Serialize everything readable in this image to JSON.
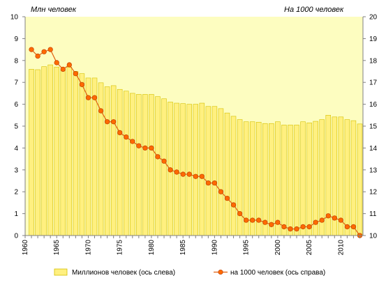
{
  "chart_data": {
    "type": "bar",
    "left_unit_label": "Млн  человек",
    "right_unit_label": "На 1000 человек",
    "colors": {
      "plot_background": "#fdfdc0",
      "bar_fill": "#fff080",
      "bar_stroke": "#d4c000",
      "line": "#e06010",
      "marker_fill": "#ff6a00",
      "marker_stroke": "#c04000",
      "axis": "#808080"
    },
    "left_axis": {
      "min": 0,
      "max": 10,
      "ticks": [
        "0",
        "1",
        "2",
        "3",
        "4",
        "5",
        "6",
        "7",
        "8",
        "9",
        "10"
      ]
    },
    "right_axis": {
      "min": 10,
      "max": 20,
      "ticks": [
        "10",
        "11",
        "12",
        "13",
        "14",
        "15",
        "16",
        "17",
        "18",
        "19",
        "20"
      ]
    },
    "x_ticks": [
      "1960",
      "1965",
      "1970",
      "1975",
      "1980",
      "1985",
      "1990",
      "1995",
      "2000",
      "2005",
      "2010"
    ],
    "series": [
      {
        "name": "Миллионов   человек (ось слева)",
        "type": "bar",
        "axis": "left",
        "x": [
          1961,
          1962,
          1963,
          1964,
          1965,
          1966,
          1967,
          1968,
          1969,
          1970,
          1971,
          1972,
          1973,
          1974,
          1975,
          1976,
          1977,
          1978,
          1979,
          1980,
          1981,
          1982,
          1983,
          1984,
          1985,
          1986,
          1987,
          1988,
          1989,
          1990,
          1991,
          1992,
          1993,
          1994,
          1995,
          1996,
          1997,
          1998,
          1999,
          2000,
          2001,
          2002,
          2003,
          2004,
          2005,
          2006,
          2007,
          2008,
          2009,
          2010,
          2011,
          2012,
          2013
        ],
        "values": [
          7.6,
          7.58,
          7.72,
          7.8,
          7.7,
          7.56,
          7.7,
          7.5,
          7.4,
          7.2,
          7.2,
          6.98,
          6.8,
          6.85,
          6.68,
          6.6,
          6.5,
          6.45,
          6.45,
          6.45,
          6.35,
          6.25,
          6.1,
          6.05,
          6.03,
          6.0,
          6.0,
          6.05,
          5.9,
          5.9,
          5.8,
          5.6,
          5.45,
          5.3,
          5.2,
          5.2,
          5.18,
          5.12,
          5.12,
          5.2,
          5.05,
          5.05,
          5.05,
          5.2,
          5.15,
          5.22,
          5.3,
          5.5,
          5.42,
          5.42,
          5.3,
          5.25,
          5.1
        ]
      },
      {
        "name": "на 1000  человек (ось справа)",
        "type": "line",
        "axis": "right",
        "x": [
          1961,
          1962,
          1963,
          1964,
          1965,
          1966,
          1967,
          1968,
          1969,
          1970,
          1971,
          1972,
          1973,
          1974,
          1975,
          1976,
          1977,
          1978,
          1979,
          1980,
          1981,
          1982,
          1983,
          1984,
          1985,
          1986,
          1987,
          1988,
          1989,
          1990,
          1991,
          1992,
          1993,
          1994,
          1995,
          1996,
          1997,
          1998,
          1999,
          2000,
          2001,
          2002,
          2003,
          2004,
          2005,
          2006,
          2007,
          2008,
          2009,
          2010,
          2011,
          2012,
          2013
        ],
        "values": [
          18.5,
          18.2,
          18.4,
          18.5,
          17.9,
          17.6,
          17.8,
          17.4,
          16.9,
          16.3,
          16.3,
          15.7,
          15.2,
          15.2,
          14.7,
          14.5,
          14.3,
          14.1,
          14.0,
          14.0,
          13.6,
          13.4,
          13.0,
          12.9,
          12.8,
          12.8,
          12.7,
          12.7,
          12.4,
          12.4,
          12.0,
          11.7,
          11.4,
          11.0,
          10.7,
          10.7,
          10.7,
          10.6,
          10.5,
          10.6,
          10.4,
          10.3,
          10.3,
          10.4,
          10.4,
          10.6,
          10.7,
          10.9,
          10.8,
          10.7,
          10.4,
          10.4,
          10.0
        ]
      }
    ],
    "xlim": [
      1960,
      2013.5
    ],
    "grid": false,
    "legend_position": "bottom"
  }
}
